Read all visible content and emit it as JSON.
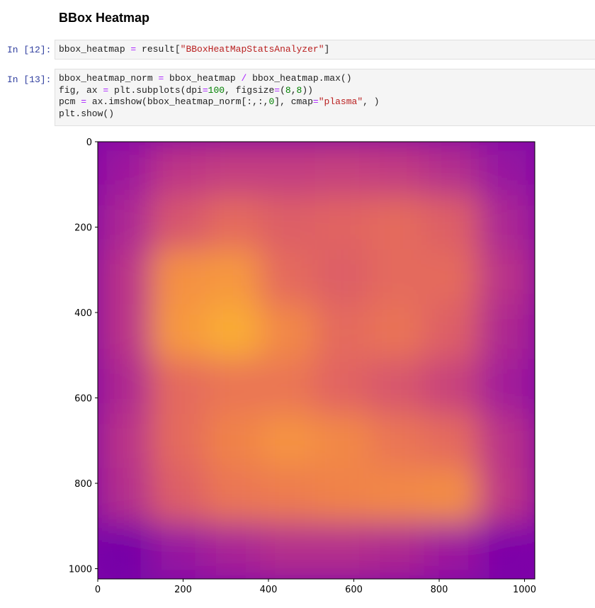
{
  "heading": "BBox Heatmap",
  "cells": [
    {
      "prompt": "In [12]:",
      "lines": [
        [
          [
            "bbox_heatmap ",
            "pun"
          ],
          [
            "=",
            "op"
          ],
          [
            " result[",
            "pun"
          ],
          [
            "\"BBoxHeatMapStatsAnalyzer\"",
            "str"
          ],
          [
            "]",
            "pun"
          ]
        ]
      ]
    },
    {
      "prompt": "In [13]:",
      "lines": [
        [
          [
            "bbox_heatmap_norm ",
            "pun"
          ],
          [
            "=",
            "op"
          ],
          [
            " bbox_heatmap ",
            "pun"
          ],
          [
            "/",
            "op"
          ],
          [
            " bbox_heatmap.max()",
            "pun"
          ]
        ],
        [
          [
            "fig, ax ",
            "pun"
          ],
          [
            "=",
            "op"
          ],
          [
            " plt.subplots(dpi",
            "pun"
          ],
          [
            "=",
            "op"
          ],
          [
            "100",
            "num"
          ],
          [
            ", figsize",
            "pun"
          ],
          [
            "=",
            "op"
          ],
          [
            "(",
            "pun"
          ],
          [
            "8",
            "num"
          ],
          [
            ",",
            "pun"
          ],
          [
            "8",
            "num"
          ],
          [
            "))",
            "pun"
          ]
        ],
        [
          [
            "pcm ",
            "pun"
          ],
          [
            "=",
            "op"
          ],
          [
            " ax.imshow(bbox_heatmap_norm[:,:,",
            "pun"
          ],
          [
            "0",
            "num"
          ],
          [
            "], cmap",
            "pun"
          ],
          [
            "=",
            "op"
          ],
          [
            "\"plasma\"",
            "str"
          ],
          [
            ", )",
            "pun"
          ]
        ],
        [
          [
            "plt.show()",
            "pun"
          ]
        ]
      ]
    }
  ],
  "chart_data": {
    "type": "heatmap",
    "title": "",
    "xlabel": "",
    "ylabel": "",
    "colormap": "plasma",
    "xlim": [
      0,
      1024
    ],
    "ylim": [
      1024,
      0
    ],
    "xticks": [
      0,
      200,
      400,
      600,
      800,
      1000
    ],
    "yticks": [
      0,
      200,
      400,
      600,
      800,
      1000
    ],
    "x_tick_labels": [
      "0",
      "200",
      "400",
      "600",
      "800",
      "1000"
    ],
    "y_tick_labels": [
      "0",
      "200",
      "400",
      "600",
      "800",
      "1000"
    ],
    "grid_cols": 8,
    "grid_rows": 8,
    "values": [
      [
        0.3,
        0.42,
        0.45,
        0.45,
        0.46,
        0.44,
        0.38,
        0.28
      ],
      [
        0.35,
        0.55,
        0.62,
        0.58,
        0.6,
        0.62,
        0.58,
        0.35
      ],
      [
        0.4,
        0.75,
        0.78,
        0.62,
        0.58,
        0.62,
        0.62,
        0.4
      ],
      [
        0.4,
        0.78,
        0.84,
        0.72,
        0.62,
        0.65,
        0.58,
        0.36
      ],
      [
        0.36,
        0.62,
        0.66,
        0.66,
        0.6,
        0.55,
        0.48,
        0.32
      ],
      [
        0.4,
        0.62,
        0.7,
        0.76,
        0.72,
        0.66,
        0.62,
        0.4
      ],
      [
        0.38,
        0.58,
        0.66,
        0.68,
        0.7,
        0.72,
        0.74,
        0.42
      ],
      [
        0.18,
        0.28,
        0.34,
        0.38,
        0.38,
        0.36,
        0.3,
        0.2
      ]
    ]
  }
}
